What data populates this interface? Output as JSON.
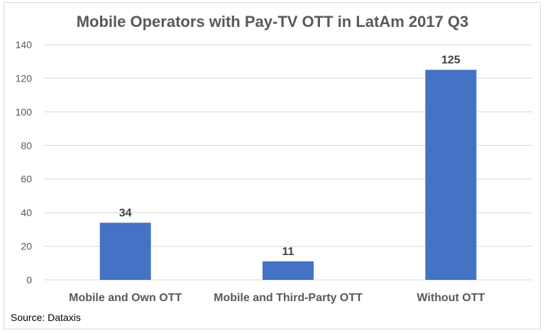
{
  "chart_data": {
    "type": "bar",
    "title": "Mobile Operators with Pay-TV OTT in LatAm 2017 Q3",
    "categories": [
      "Mobile and Own OTT",
      "Mobile and Third-Party OTT",
      "Without OTT"
    ],
    "values": [
      34,
      11,
      125
    ],
    "data_labels": [
      "34",
      "11",
      "125"
    ],
    "xlabel": "",
    "ylabel": "",
    "ylim": [
      0,
      140
    ],
    "yticks": [
      "0",
      "20",
      "40",
      "60",
      "80",
      "100",
      "120",
      "140"
    ],
    "grid": true,
    "bar_color": "#4472c4",
    "source": "Source: Dataxis"
  }
}
